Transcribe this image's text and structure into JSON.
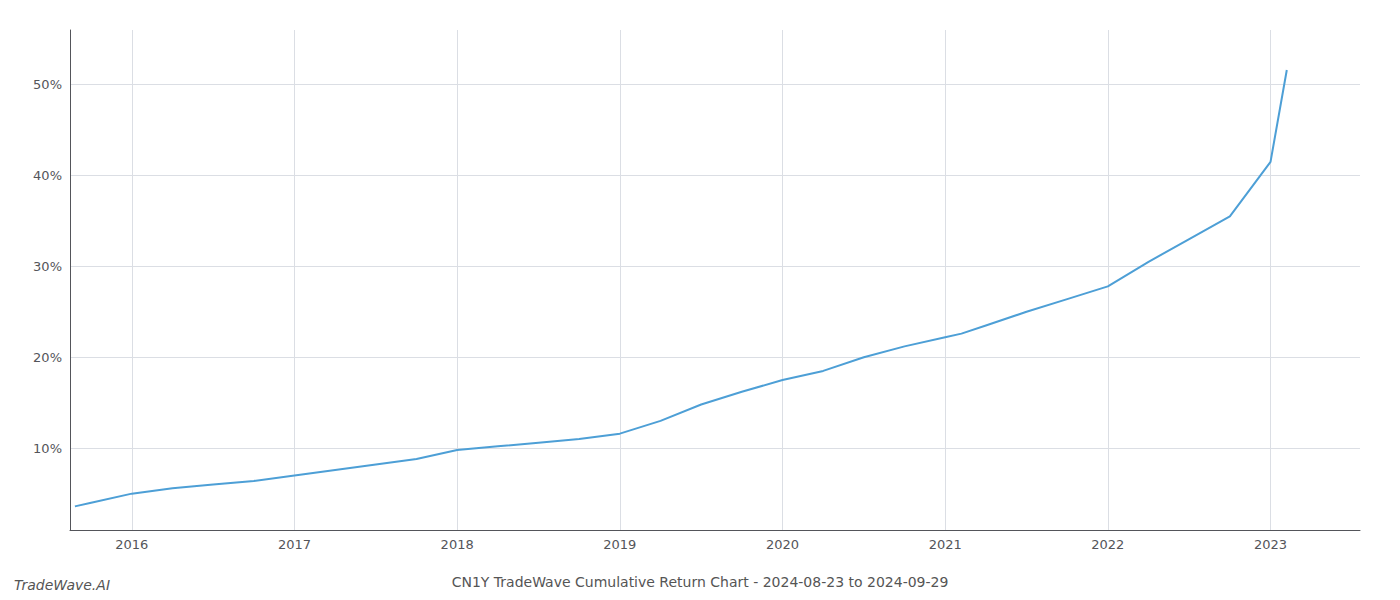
{
  "chart_data": {
    "type": "line",
    "title": "CN1Y TradeWave Cumulative Return Chart - 2024-08-23 to 2024-09-29",
    "annotations": [
      "TradeWave.AI"
    ],
    "x": [
      2015.65,
      2015.75,
      2016.0,
      2016.25,
      2016.5,
      2016.75,
      2017.0,
      2017.25,
      2017.5,
      2017.75,
      2018.0,
      2018.25,
      2018.5,
      2018.75,
      2019.0,
      2019.25,
      2019.5,
      2019.75,
      2020.0,
      2020.25,
      2020.5,
      2020.75,
      2021.0,
      2021.1,
      2021.25,
      2021.5,
      2021.75,
      2022.0,
      2022.25,
      2022.5,
      2022.75,
      2023.0,
      2023.1
    ],
    "values": [
      0.036,
      0.04,
      0.05,
      0.056,
      0.06,
      0.064,
      0.07,
      0.076,
      0.082,
      0.088,
      0.098,
      0.102,
      0.106,
      0.11,
      0.116,
      0.13,
      0.148,
      0.162,
      0.175,
      0.185,
      0.2,
      0.212,
      0.222,
      0.226,
      0.235,
      0.25,
      0.264,
      0.278,
      0.305,
      0.33,
      0.355,
      0.415,
      0.516
    ],
    "color": "#4d9fd6",
    "xlim": [
      2015.62,
      2023.55
    ],
    "xticks": [
      2016,
      2017,
      2018,
      2019,
      2020,
      2021,
      2022,
      2023
    ],
    "ylim": [
      0.01,
      0.56
    ],
    "yticks": [
      {
        "value": 0.1,
        "label": "10%"
      },
      {
        "value": 0.2,
        "label": "20%"
      },
      {
        "value": 0.3,
        "label": "30%"
      },
      {
        "value": 0.4,
        "label": "40%"
      },
      {
        "value": 0.5,
        "label": "50%"
      }
    ],
    "grid": true
  }
}
